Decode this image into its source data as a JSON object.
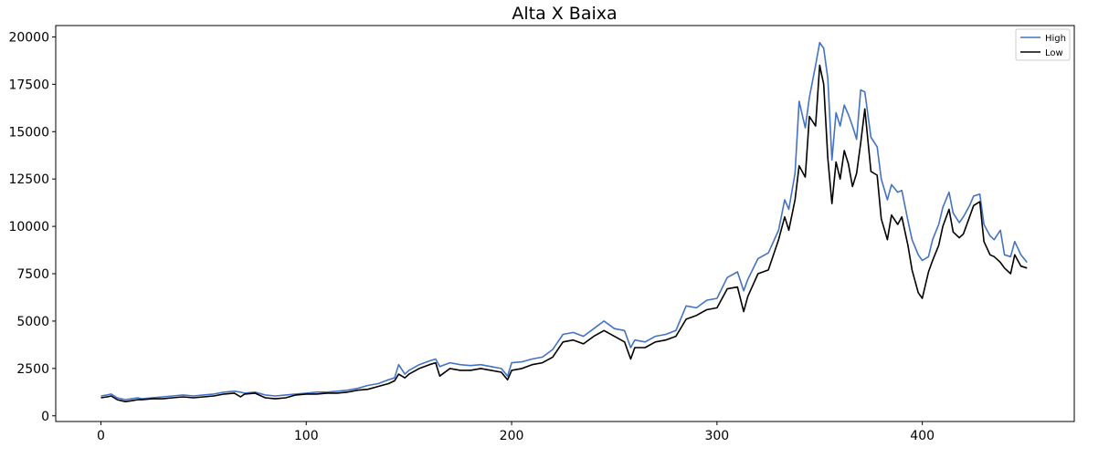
{
  "chart_data": {
    "type": "line",
    "title": "Alta X Baixa",
    "xlabel": "",
    "ylabel": "",
    "xlim": [
      -22,
      474
    ],
    "ylim": [
      -300,
      20600
    ],
    "x_ticks": [
      0,
      100,
      200,
      300,
      400
    ],
    "x_tick_labels": [
      "0",
      "100",
      "200",
      "300",
      "400"
    ],
    "y_ticks": [
      0,
      2500,
      5000,
      7500,
      10000,
      12500,
      15000,
      17500,
      20000
    ],
    "y_tick_labels": [
      "0",
      "2500",
      "5000",
      "7500",
      "10000",
      "12500",
      "15000",
      "17500",
      "20000"
    ],
    "grid": false,
    "legend": {
      "position": "top-right",
      "entries": [
        "High",
        "Low"
      ]
    },
    "series": [
      {
        "name": "High",
        "color": "#4472c4",
        "x": [
          0,
          3,
          5,
          8,
          10,
          12,
          15,
          18,
          20,
          25,
          30,
          35,
          40,
          45,
          50,
          55,
          60,
          65,
          68,
          70,
          75,
          80,
          85,
          90,
          95,
          100,
          105,
          110,
          115,
          120,
          125,
          130,
          135,
          140,
          143,
          145,
          148,
          150,
          155,
          160,
          163,
          165,
          170,
          175,
          180,
          185,
          190,
          195,
          198,
          200,
          205,
          210,
          215,
          220,
          225,
          230,
          235,
          240,
          245,
          250,
          255,
          258,
          260,
          265,
          270,
          275,
          280,
          285,
          290,
          295,
          300,
          305,
          310,
          313,
          315,
          320,
          325,
          330,
          333,
          335,
          338,
          340,
          343,
          345,
          348,
          350,
          352,
          354,
          356,
          358,
          360,
          362,
          364,
          366,
          368,
          370,
          372,
          375,
          378,
          380,
          383,
          385,
          388,
          390,
          393,
          395,
          398,
          400,
          403,
          405,
          408,
          410,
          413,
          415,
          418,
          420,
          423,
          425,
          428,
          430,
          433,
          435,
          438,
          440,
          443,
          445,
          448,
          451
        ],
        "y": [
          1050,
          1100,
          1150,
          950,
          900,
          850,
          900,
          950,
          900,
          950,
          1000,
          1050,
          1100,
          1050,
          1100,
          1150,
          1250,
          1300,
          1250,
          1200,
          1250,
          1100,
          1050,
          1100,
          1150,
          1200,
          1250,
          1250,
          1300,
          1350,
          1450,
          1600,
          1700,
          1900,
          2000,
          2700,
          2200,
          2400,
          2700,
          2900,
          3000,
          2600,
          2800,
          2700,
          2650,
          2700,
          2600,
          2500,
          2100,
          2800,
          2850,
          3000,
          3100,
          3500,
          4300,
          4400,
          4200,
          4600,
          5000,
          4600,
          4500,
          3600,
          4000,
          3900,
          4200,
          4300,
          4500,
          5800,
          5700,
          6100,
          6200,
          7300,
          7600,
          6600,
          7200,
          8300,
          8600,
          9800,
          11400,
          10900,
          12800,
          16600,
          15200,
          16800,
          18500,
          19700,
          19400,
          17800,
          13500,
          16000,
          15300,
          16400,
          15900,
          15300,
          14600,
          17200,
          17100,
          14700,
          14200,
          12500,
          11400,
          12200,
          11800,
          11900,
          10300,
          9300,
          8500,
          8200,
          8400,
          9300,
          10100,
          11000,
          11800,
          10700,
          10200,
          10500,
          11100,
          11600,
          11700,
          10100,
          9500,
          9300,
          9800,
          8500,
          8400,
          9200,
          8500,
          8100
        ]
      },
      {
        "name": "Low",
        "color": "#000000",
        "x": [
          0,
          3,
          5,
          8,
          10,
          12,
          15,
          18,
          20,
          25,
          30,
          35,
          40,
          45,
          50,
          55,
          60,
          65,
          68,
          70,
          75,
          80,
          85,
          90,
          95,
          100,
          105,
          110,
          115,
          120,
          125,
          130,
          135,
          140,
          143,
          145,
          148,
          150,
          155,
          160,
          163,
          165,
          170,
          175,
          180,
          185,
          190,
          195,
          198,
          200,
          205,
          210,
          215,
          220,
          225,
          230,
          235,
          240,
          245,
          250,
          255,
          258,
          260,
          265,
          270,
          275,
          280,
          285,
          290,
          295,
          300,
          305,
          310,
          313,
          315,
          320,
          325,
          330,
          333,
          335,
          338,
          340,
          343,
          345,
          348,
          350,
          352,
          354,
          356,
          358,
          360,
          362,
          364,
          366,
          368,
          370,
          372,
          375,
          378,
          380,
          383,
          385,
          388,
          390,
          393,
          395,
          398,
          400,
          403,
          405,
          408,
          410,
          413,
          415,
          418,
          420,
          423,
          425,
          428,
          430,
          433,
          435,
          438,
          440,
          443,
          445,
          448,
          451
        ],
        "y": [
          950,
          1000,
          1050,
          850,
          800,
          750,
          800,
          850,
          850,
          900,
          900,
          950,
          1000,
          950,
          1000,
          1050,
          1150,
          1200,
          1000,
          1150,
          1200,
          950,
          900,
          950,
          1100,
          1150,
          1150,
          1200,
          1200,
          1250,
          1350,
          1400,
          1550,
          1700,
          1850,
          2200,
          2000,
          2200,
          2500,
          2700,
          2800,
          2100,
          2500,
          2400,
          2400,
          2500,
          2400,
          2300,
          1900,
          2400,
          2500,
          2700,
          2800,
          3100,
          3900,
          4000,
          3800,
          4200,
          4500,
          4200,
          3900,
          3000,
          3600,
          3600,
          3900,
          4000,
          4200,
          5100,
          5300,
          5600,
          5700,
          6700,
          6800,
          5500,
          6300,
          7500,
          7700,
          9300,
          10500,
          9800,
          11400,
          13200,
          12600,
          15800,
          15300,
          18500,
          17500,
          13600,
          11200,
          13400,
          12500,
          14000,
          13300,
          12100,
          12800,
          14400,
          16200,
          12900,
          12700,
          10400,
          9300,
          10600,
          10100,
          10500,
          9000,
          7700,
          6500,
          6200,
          7600,
          8200,
          9000,
          10000,
          10900,
          9700,
          9400,
          9600,
          10500,
          11100,
          11300,
          9200,
          8500,
          8400,
          8100,
          7800,
          7500,
          8500,
          7900,
          7800
        ]
      }
    ]
  }
}
